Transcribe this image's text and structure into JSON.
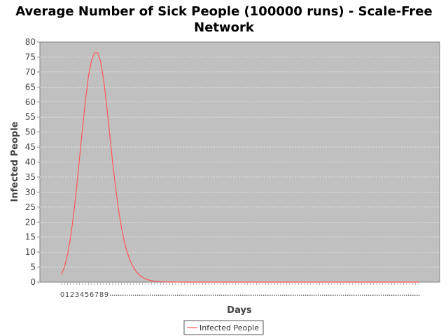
{
  "chart_data": {
    "type": "line",
    "title": "Average Number of Sick People (100000 runs) - Scale-Free Network",
    "title_lines": [
      "Average Number of Sick People (100000 runs) - Scale-Free",
      "Network"
    ],
    "xlabel": "Days",
    "ylabel": "Infected People",
    "x_tick_labels": [
      "0",
      "1",
      "2",
      "3",
      "4",
      "5",
      "6",
      "7",
      "8",
      "9"
    ],
    "ylim": [
      0,
      80
    ],
    "y_ticks": [
      0,
      5,
      10,
      15,
      20,
      25,
      30,
      35,
      40,
      45,
      50,
      55,
      60,
      65,
      70,
      75,
      80
    ],
    "grid": true,
    "legend": "bottom-center",
    "plot_background": "#c0c0c0",
    "series": [
      {
        "name": "Infected People",
        "color": "#ff5555",
        "values": [
          2.6,
          5.2,
          9.3,
          15.0,
          22.5,
          31.5,
          41.5,
          51.5,
          61.0,
          69.0,
          74.0,
          76.4,
          76.4,
          73.5,
          67.5,
          59.0,
          49.5,
          40.0,
          31.5,
          24.0,
          18.0,
          13.0,
          9.5,
          6.8,
          4.8,
          3.3,
          2.3,
          1.6,
          1.1,
          0.7,
          0.5,
          0.3,
          0.2,
          0.15,
          0.1,
          0.05,
          0.03,
          0.02,
          0.01,
          0.01,
          0,
          0,
          0,
          0,
          0,
          0,
          0,
          0,
          0,
          0,
          0,
          0,
          0,
          0,
          0,
          0,
          0,
          0,
          0,
          0,
          0,
          0,
          0,
          0,
          0,
          0,
          0,
          0,
          0,
          0,
          0,
          0,
          0,
          0,
          0,
          0,
          0,
          0,
          0,
          0,
          0,
          0,
          0,
          0,
          0,
          0,
          0,
          0,
          0,
          0,
          0,
          0,
          0,
          0,
          0,
          0,
          0,
          0,
          0,
          0,
          0,
          0,
          0,
          0,
          0,
          0,
          0,
          0,
          0,
          0,
          0,
          0,
          0,
          0,
          0,
          0,
          0,
          0,
          0,
          0
        ]
      }
    ]
  }
}
